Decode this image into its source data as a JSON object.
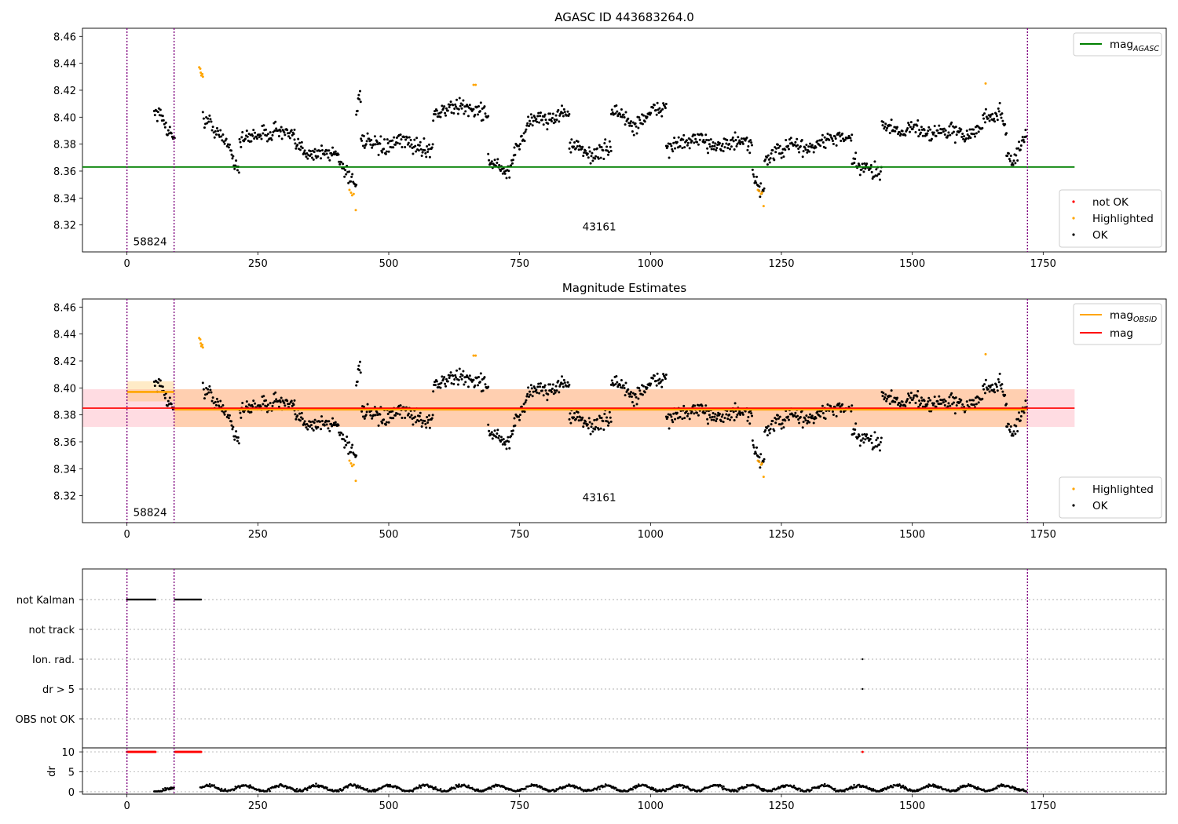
{
  "chart_data": [
    {
      "type": "scatter",
      "title": "AGASC ID 443683264.0",
      "xlim": [
        -85,
        1985
      ],
      "ylim": [
        8.3,
        8.466
      ],
      "xticks": [
        0,
        250,
        500,
        750,
        1000,
        1250,
        1500,
        1750
      ],
      "xtick_labels": [
        "0",
        "250",
        "500",
        "750",
        "1000",
        "1250",
        "1500",
        "1750"
      ],
      "yticks": [
        8.32,
        8.34,
        8.36,
        8.38,
        8.4,
        8.42,
        8.44,
        8.46
      ],
      "ytick_labels": [
        "8.32",
        "8.34",
        "8.36",
        "8.38",
        "8.40",
        "8.42",
        "8.44",
        "8.46"
      ],
      "vlines": [
        0,
        90,
        1720
      ],
      "obsid_labels": [
        {
          "x": 12,
          "y": 8.308,
          "text": "58824"
        },
        {
          "x": 870,
          "y": 8.319,
          "text": "43161"
        }
      ],
      "mag_agasc": {
        "value": 8.363,
        "x": [
          -85,
          1810
        ],
        "color": "#008000"
      },
      "legend_lines": [
        {
          "base": "mag",
          "sub": "AGASC",
          "color": "#008000"
        }
      ],
      "legend_points": [
        {
          "label": "not OK",
          "color": "#ff0000"
        },
        {
          "label": "Highlighted",
          "color": "#ffa500"
        },
        {
          "label": "OK",
          "color": "#000000"
        }
      ],
      "highlighted": [
        {
          "x": 138,
          "y": 8.437
        },
        {
          "x": 140,
          "y": 8.436
        },
        {
          "x": 141,
          "y": 8.433
        },
        {
          "x": 142,
          "y": 8.431
        },
        {
          "x": 144,
          "y": 8.432
        },
        {
          "x": 145,
          "y": 8.43
        },
        {
          "x": 425,
          "y": 8.346
        },
        {
          "x": 428,
          "y": 8.344
        },
        {
          "x": 430,
          "y": 8.342
        },
        {
          "x": 433,
          "y": 8.343
        },
        {
          "x": 437,
          "y": 8.331
        },
        {
          "x": 662,
          "y": 8.424
        },
        {
          "x": 666,
          "y": 8.424
        },
        {
          "x": 1205,
          "y": 8.346
        },
        {
          "x": 1208,
          "y": 8.345
        },
        {
          "x": 1211,
          "y": 8.343
        },
        {
          "x": 1213,
          "y": 8.344
        },
        {
          "x": 1216,
          "y": 8.334
        },
        {
          "x": 1640,
          "y": 8.425
        }
      ],
      "ok_segments": [
        {
          "x0": 52,
          "x1": 92,
          "step": 1.5,
          "y": [
            8.405,
            8.402,
            8.396,
            8.388,
            8.387
          ]
        },
        {
          "x0": 145,
          "x1": 200,
          "step": 1.6,
          "y": [
            8.398,
            8.396,
            8.388,
            8.382,
            8.378
          ]
        },
        {
          "x0": 200,
          "x1": 215,
          "step": 1.4,
          "y": [
            8.37,
            8.366,
            8.362
          ]
        },
        {
          "x0": 215,
          "x1": 320,
          "step": 1.4,
          "y": [
            8.382,
            8.385,
            8.388,
            8.387,
            8.391,
            8.388,
            8.385
          ]
        },
        {
          "x0": 320,
          "x1": 405,
          "step": 1.4,
          "y": [
            8.38,
            8.376,
            8.373,
            8.374,
            8.372,
            8.375
          ]
        },
        {
          "x0": 405,
          "x1": 438,
          "step": 1.5,
          "y": [
            8.368,
            8.361,
            8.355,
            8.35
          ]
        },
        {
          "x0": 438,
          "x1": 447,
          "step": 1.2,
          "y": [
            8.4,
            8.415,
            8.418
          ]
        },
        {
          "x0": 447,
          "x1": 585,
          "step": 1.4,
          "y": [
            8.384,
            8.38,
            8.377,
            8.379,
            8.383,
            8.38,
            8.376,
            8.378
          ]
        },
        {
          "x0": 585,
          "x1": 690,
          "step": 1.4,
          "y": [
            8.402,
            8.405,
            8.408,
            8.407,
            8.405,
            8.403
          ]
        },
        {
          "x0": 690,
          "x1": 740,
          "step": 1.4,
          "y": [
            8.368,
            8.365,
            8.361,
            8.358,
            8.366
          ]
        },
        {
          "x0": 740,
          "x1": 765,
          "step": 1.4,
          "y": [
            8.375,
            8.383,
            8.392
          ]
        },
        {
          "x0": 765,
          "x1": 845,
          "step": 1.4,
          "y": [
            8.396,
            8.4,
            8.398,
            8.402,
            8.404
          ]
        },
        {
          "x0": 845,
          "x1": 925,
          "step": 1.4,
          "y": [
            8.38,
            8.376,
            8.372,
            8.374,
            8.378
          ]
        },
        {
          "x0": 925,
          "x1": 1030,
          "step": 1.4,
          "y": [
            8.405,
            8.402,
            8.392,
            8.4,
            8.405,
            8.408
          ]
        },
        {
          "x0": 1030,
          "x1": 1195,
          "step": 1.4,
          "y": [
            8.378,
            8.38,
            8.383,
            8.381,
            8.379,
            8.382,
            8.378
          ]
        },
        {
          "x0": 1195,
          "x1": 1218,
          "step": 1.3,
          "y": [
            8.356,
            8.348,
            8.346
          ]
        },
        {
          "x0": 1218,
          "x1": 1385,
          "step": 1.4,
          "y": [
            8.368,
            8.375,
            8.38,
            8.376,
            8.382,
            8.385,
            8.382
          ]
        },
        {
          "x0": 1385,
          "x1": 1442,
          "step": 1.4,
          "y": [
            8.368,
            8.362,
            8.36,
            8.361
          ]
        },
        {
          "x0": 1442,
          "x1": 1635,
          "step": 1.4,
          "y": [
            8.395,
            8.39,
            8.392,
            8.388,
            8.39,
            8.386,
            8.392
          ]
        },
        {
          "x0": 1635,
          "x1": 1680,
          "step": 1.4,
          "y": [
            8.402,
            8.398,
            8.405,
            8.392
          ]
        },
        {
          "x0": 1680,
          "x1": 1718,
          "step": 1.4,
          "y": [
            8.372,
            8.366,
            8.378,
            8.388
          ]
        }
      ]
    },
    {
      "type": "scatter",
      "title": "Magnitude Estimates",
      "xlim": [
        -85,
        1985
      ],
      "ylim": [
        8.3,
        8.466
      ],
      "xticks": [
        0,
        250,
        500,
        750,
        1000,
        1250,
        1500,
        1750
      ],
      "xtick_labels": [
        "0",
        "250",
        "500",
        "750",
        "1000",
        "1250",
        "1500",
        "1750"
      ],
      "yticks": [
        8.32,
        8.34,
        8.36,
        8.38,
        8.4,
        8.42,
        8.44,
        8.46
      ],
      "ytick_labels": [
        "8.32",
        "8.34",
        "8.36",
        "8.38",
        "8.40",
        "8.42",
        "8.44",
        "8.46"
      ],
      "vlines": [
        0,
        90,
        1720
      ],
      "obsid_labels": [
        {
          "x": 12,
          "y": 8.308,
          "text": "58824"
        },
        {
          "x": 870,
          "y": 8.319,
          "text": "43161"
        }
      ],
      "mag_band": {
        "x": [
          -85,
          1810
        ],
        "y": [
          8.371,
          8.399
        ],
        "color": "#ffc0cb"
      },
      "mag_line": {
        "x": [
          -85,
          1810
        ],
        "value": 8.385,
        "color": "#ff0000"
      },
      "obsid_bands": [
        {
          "x": [
            0,
            90
          ],
          "y": [
            8.39,
            8.405
          ],
          "value": 8.397
        },
        {
          "x": [
            90,
            1720
          ],
          "y": [
            8.371,
            8.399
          ],
          "value": 8.384
        }
      ],
      "legend_lines": [
        {
          "base": "mag",
          "sub": "OBSID",
          "color": "#ffa500"
        },
        {
          "base": "mag",
          "sub": "",
          "color": "#ff0000"
        }
      ],
      "legend_points": [
        {
          "label": "Highlighted",
          "color": "#ffa500"
        },
        {
          "label": "OK",
          "color": "#000000"
        }
      ]
    },
    {
      "type": "scatter",
      "xlim": [
        -85,
        1985
      ],
      "flags": [
        "not Kalman",
        "not track",
        "Ion. rad.",
        "dr > 5",
        "OBS not OK"
      ],
      "flag_points": [
        {
          "flag": "not Kalman",
          "ranges": [
            [
              0,
              55
            ],
            [
              92,
              142
            ]
          ]
        },
        {
          "flag": "Ion. rad.",
          "ranges": [
            [
              1405,
              1405
            ]
          ]
        },
        {
          "flag": "dr > 5",
          "ranges": [
            [
              1405,
              1405
            ]
          ]
        }
      ],
      "dr": {
        "ylabel": "dr",
        "ylim": [
          -0.6,
          11
        ],
        "yticks": [
          0,
          5,
          10
        ],
        "ytick_labels": [
          "0",
          "5",
          "10"
        ],
        "clipped_value": 10,
        "clipped_ranges": [
          [
            0,
            55
          ],
          [
            92,
            142
          ],
          [
            1405,
            1405
          ]
        ],
        "low_segments": [
          {
            "x0": 52,
            "x1": 90,
            "y": 0.3
          },
          {
            "x0": 140,
            "x1": 1718,
            "y": 0.9
          }
        ]
      },
      "xticks": [
        0,
        250,
        500,
        750,
        1000,
        1250,
        1500,
        1750
      ],
      "xtick_labels": [
        "0",
        "250",
        "500",
        "750",
        "1000",
        "1250",
        "1500",
        "1750"
      ]
    }
  ]
}
